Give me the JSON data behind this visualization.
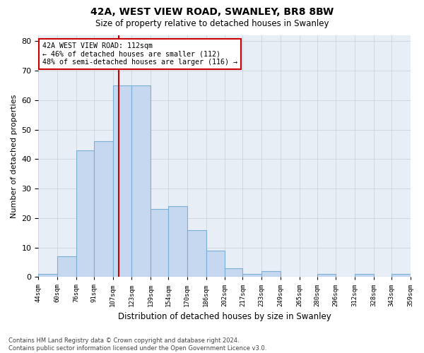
{
  "title_line1": "42A, WEST VIEW ROAD, SWANLEY, BR8 8BW",
  "title_line2": "Size of property relative to detached houses in Swanley",
  "xlabel": "Distribution of detached houses by size in Swanley",
  "ylabel": "Number of detached properties",
  "footnote": "Contains HM Land Registry data © Crown copyright and database right 2024.\nContains public sector information licensed under the Open Government Licence v3.0.",
  "bar_edges": [
    44,
    60,
    76,
    91,
    107,
    123,
    139,
    154,
    170,
    186,
    202,
    217,
    233,
    249,
    265,
    280,
    296,
    312,
    328,
    343,
    359
  ],
  "bar_heights": [
    1,
    7,
    43,
    46,
    65,
    65,
    23,
    24,
    16,
    9,
    3,
    1,
    2,
    0,
    0,
    1,
    0,
    1,
    0,
    1
  ],
  "bar_color": "#C5D8EF",
  "bar_edge_color": "#7BAFD4",
  "property_value": 112,
  "vline_color": "#CC0000",
  "annotation_text": "42A WEST VIEW ROAD: 112sqm\n← 46% of detached houses are smaller (112)\n48% of semi-detached houses are larger (116) →",
  "annotation_box_edgecolor": "#CC0000",
  "ylim": [
    0,
    82
  ],
  "yticks": [
    0,
    10,
    20,
    30,
    40,
    50,
    60,
    70,
    80
  ],
  "grid_color": "#C8CFD8",
  "background_color": "#E8EEF5",
  "figsize": [
    6.0,
    5.0
  ],
  "dpi": 100
}
